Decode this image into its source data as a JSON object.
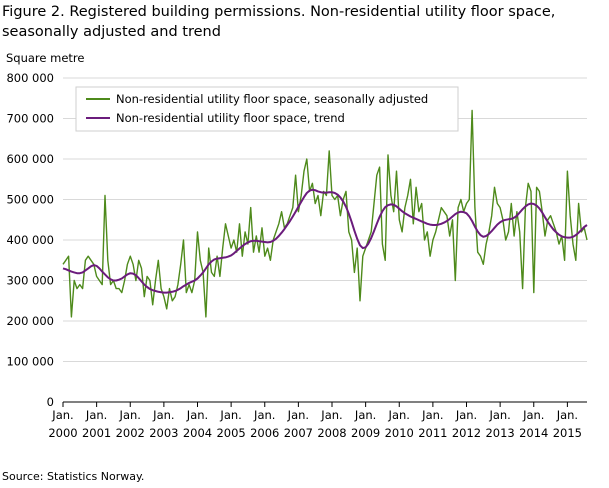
{
  "figure": {
    "title_line1": "Figure 2. Registered building permissions. Non-residential utility floor space,",
    "title_line2": "seasonally adjusted and trend",
    "unit_label": "Square metre",
    "source": "Source: Statistics Norway."
  },
  "chart_data": {
    "type": "line",
    "title": "Figure 2. Registered building permissions. Non-residential utility floor space, seasonally adjusted and trend",
    "ylabel": "Square metre",
    "xlabel": "",
    "ylim": [
      0,
      800000
    ],
    "yticks": [
      0,
      100000,
      200000,
      300000,
      400000,
      500000,
      600000,
      700000,
      800000
    ],
    "ytick_labels": [
      "0",
      "100 000",
      "200 000",
      "300 000",
      "400 000",
      "500 000",
      "600 000",
      "700 000",
      "800 000"
    ],
    "x_start": "2000-01",
    "x_end": "2015-07",
    "xticks": [
      {
        "month": "Jan.",
        "year": "2000"
      },
      {
        "month": "Jan.",
        "year": "2001"
      },
      {
        "month": "Jan.",
        "year": "2002"
      },
      {
        "month": "Jan.",
        "year": "2003"
      },
      {
        "month": "Jan.",
        "year": "2004"
      },
      {
        "month": "Jan.",
        "year": "2005"
      },
      {
        "month": "Jan.",
        "year": "2006"
      },
      {
        "month": "Jan.",
        "year": "2007"
      },
      {
        "month": "Jan.",
        "year": "2008"
      },
      {
        "month": "Jan.",
        "year": "2009"
      },
      {
        "month": "Jan.",
        "year": "2010"
      },
      {
        "month": "Jan.",
        "year": "2011"
      },
      {
        "month": "Jan.",
        "year": "2012"
      },
      {
        "month": "Jan.",
        "year": "2013"
      },
      {
        "month": "Jan.",
        "year": "2014"
      },
      {
        "month": "Jan.",
        "year": "2015"
      }
    ],
    "grid": true,
    "legend_position": "top-left",
    "series": [
      {
        "name": "Non-residential utility floor space, seasonally adjusted",
        "color": "#4e8a1b",
        "values": [
          340000,
          350000,
          360000,
          210000,
          300000,
          280000,
          290000,
          280000,
          350000,
          360000,
          350000,
          340000,
          310000,
          300000,
          290000,
          510000,
          350000,
          290000,
          300000,
          280000,
          280000,
          270000,
          300000,
          340000,
          360000,
          340000,
          300000,
          350000,
          330000,
          260000,
          310000,
          300000,
          240000,
          300000,
          350000,
          280000,
          260000,
          230000,
          280000,
          250000,
          260000,
          290000,
          340000,
          400000,
          270000,
          290000,
          270000,
          300000,
          420000,
          350000,
          320000,
          210000,
          380000,
          320000,
          310000,
          360000,
          310000,
          380000,
          440000,
          410000,
          380000,
          400000,
          370000,
          440000,
          360000,
          420000,
          390000,
          480000,
          370000,
          410000,
          370000,
          430000,
          360000,
          380000,
          350000,
          400000,
          420000,
          440000,
          470000,
          430000,
          440000,
          460000,
          480000,
          560000,
          470000,
          510000,
          570000,
          600000,
          520000,
          540000,
          490000,
          510000,
          460000,
          520000,
          510000,
          620000,
          510000,
          500000,
          510000,
          460000,
          500000,
          520000,
          420000,
          400000,
          320000,
          380000,
          250000,
          360000,
          380000,
          400000,
          420000,
          490000,
          560000,
          580000,
          390000,
          350000,
          610000,
          510000,
          470000,
          570000,
          450000,
          420000,
          480000,
          510000,
          550000,
          440000,
          530000,
          470000,
          490000,
          400000,
          420000,
          360000,
          400000,
          420000,
          450000,
          480000,
          470000,
          460000,
          410000,
          450000,
          300000,
          480000,
          500000,
          470000,
          490000,
          500000,
          720000,
          480000,
          370000,
          360000,
          340000,
          390000,
          420000,
          460000,
          530000,
          490000,
          480000,
          450000,
          400000,
          420000,
          490000,
          410000,
          470000,
          420000,
          280000,
          480000,
          540000,
          520000,
          270000,
          530000,
          520000,
          470000,
          410000,
          450000,
          460000,
          440000,
          420000,
          390000,
          410000,
          350000,
          570000,
          460000,
          390000,
          350000,
          490000,
          420000,
          430000,
          400000
        ]
      },
      {
        "name": "Non-residential utility floor space, trend",
        "color": "#6b1c7c",
        "values": [
          330000,
          328000,
          325000,
          322000,
          320000,
          318000,
          318000,
          320000,
          325000,
          330000,
          335000,
          338000,
          336000,
          330000,
          322000,
          315000,
          308000,
          303000,
          300000,
          300000,
          302000,
          305000,
          310000,
          315000,
          318000,
          317000,
          313000,
          306000,
          298000,
          290000,
          284000,
          279000,
          276000,
          274000,
          272000,
          271000,
          270000,
          270000,
          271000,
          272000,
          274000,
          277000,
          281000,
          286000,
          290000,
          294000,
          297000,
          300000,
          305000,
          312000,
          320000,
          330000,
          340000,
          347000,
          352000,
          354000,
          355000,
          356000,
          357000,
          359000,
          362000,
          367000,
          373000,
          379000,
          385000,
          390000,
          394000,
          397000,
          398000,
          398000,
          397000,
          396000,
          395000,
          394000,
          395000,
          398000,
          403000,
          410000,
          418000,
          427000,
          437000,
          447000,
          458000,
          470000,
          482000,
          494000,
          506000,
          516000,
          522000,
          524000,
          523000,
          520000,
          518000,
          517000,
          517000,
          518000,
          518000,
          516000,
          512000,
          505000,
          495000,
          482000,
          465000,
          445000,
          423000,
          403000,
          387000,
          380000,
          382000,
          391000,
          405000,
          422000,
          440000,
          457000,
          471000,
          481000,
          486000,
          488000,
          487000,
          483000,
          477000,
          471000,
          466000,
          462000,
          458000,
          455000,
          452000,
          449000,
          446000,
          443000,
          440000,
          438000,
          437000,
          437000,
          438000,
          440000,
          443000,
          447000,
          452000,
          458000,
          464000,
          468000,
          470000,
          469000,
          466000,
          458000,
          447000,
          433000,
          421000,
          412000,
          408000,
          410000,
          415000,
          422000,
          430000,
          438000,
          444000,
          448000,
          450000,
          451000,
          452000,
          455000,
          460000,
          468000,
          476000,
          483000,
          488000,
          490000,
          489000,
          485000,
          478000,
          468000,
          456000,
          445000,
          435000,
          426000,
          419000,
          413000,
          409000,
          407000,
          406000,
          406000,
          408000,
          412000,
          418000,
          425000,
          432000,
          437000
        ]
      }
    ]
  }
}
